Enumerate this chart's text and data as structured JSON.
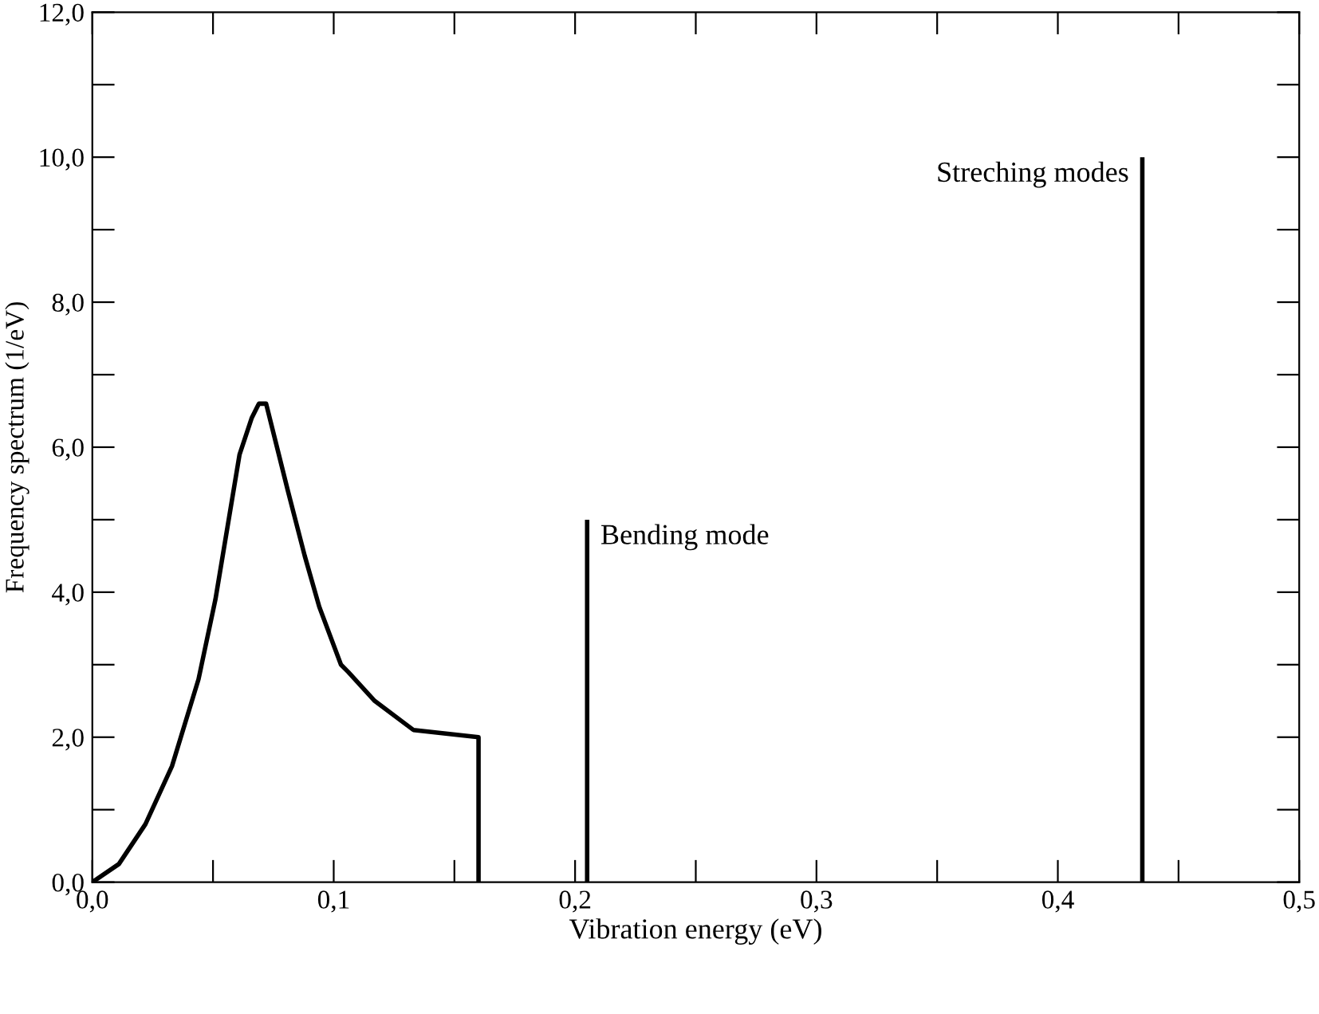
{
  "chart_data": {
    "type": "line",
    "xlabel": "Vibration energy (eV)",
    "ylabel": "Frequency spectrum (1/eV)",
    "series": [
      {
        "color": "#000000",
        "x": [
          0,
          0.011,
          0.022,
          0.033,
          0.044,
          0.051,
          0.056,
          0.061,
          0.066,
          0.069,
          0.072,
          0.075,
          0.081,
          0.088,
          0.094,
          0.103,
          0.106,
          0.117,
          0.133,
          0.16,
          0.16
        ],
        "values": [
          0,
          0.25,
          0.8,
          1.6,
          2.8,
          3.9,
          4.9,
          5.9,
          6.4,
          6.6,
          6.6,
          6.2,
          5.4,
          4.5,
          3.8,
          3.0,
          2.9,
          2.5,
          2.1,
          2.0,
          0
        ]
      },
      {
        "color": "#000000",
        "x": [
          0.205,
          0.205
        ],
        "values": [
          0,
          5
        ]
      },
      {
        "color": "#000000",
        "x": [
          0.435,
          0.435
        ],
        "values": [
          0,
          10
        ]
      }
    ],
    "annotations": [
      {
        "text": "Bending mode",
        "x": 0.205,
        "y": 5
      },
      {
        "text": "Streching modes",
        "x": 0.435,
        "y": 10
      }
    ],
    "xlim": [
      0,
      0.5
    ],
    "ylim": [
      0,
      12
    ],
    "xticks": [
      {
        "value": 0,
        "label": "0,0"
      },
      {
        "value": 0.05,
        "label": null
      },
      {
        "value": 0.1,
        "label": "0,1"
      },
      {
        "value": 0.15,
        "label": null
      },
      {
        "value": 0.2,
        "label": "0,2"
      },
      {
        "value": 0.25,
        "label": null
      },
      {
        "value": 0.3,
        "label": "0,3"
      },
      {
        "value": 0.35,
        "label": null
      },
      {
        "value": 0.4,
        "label": "0,4"
      },
      {
        "value": 0.45,
        "label": null
      },
      {
        "value": 0.5,
        "label": "0,5"
      }
    ],
    "yticks": [
      {
        "value": 0,
        "label": "0,0"
      },
      {
        "value": 1,
        "label": null
      },
      {
        "value": 2,
        "label": "2,0"
      },
      {
        "value": 3,
        "label": null
      },
      {
        "value": 4,
        "label": "4,0"
      },
      {
        "value": 5,
        "label": null
      },
      {
        "value": 6,
        "label": "6,0"
      },
      {
        "value": 7,
        "label": null
      },
      {
        "value": 8,
        "label": "8,0"
      },
      {
        "value": 9,
        "label": null
      },
      {
        "value": 10,
        "label": "10,0"
      },
      {
        "value": 11,
        "label": null
      },
      {
        "value": 12,
        "label": "12,0"
      }
    ],
    "grid": false,
    "legend": false
  }
}
